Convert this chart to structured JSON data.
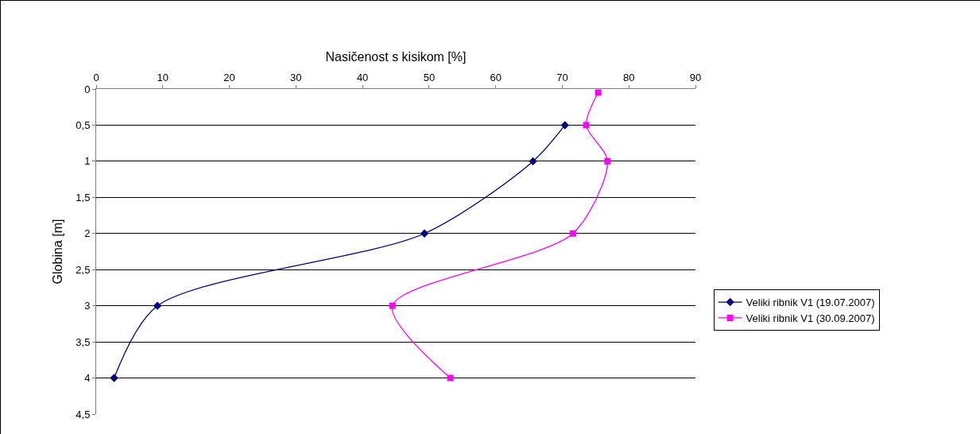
{
  "chart_data": {
    "type": "line",
    "xlabel": "Nasičenost s kisikom [%]",
    "ylabel": "Globina [m]",
    "xlim": [
      0,
      90
    ],
    "xticks": [
      0,
      10,
      20,
      30,
      40,
      50,
      60,
      70,
      80,
      90
    ],
    "ylim": [
      4.5,
      0
    ],
    "yticks": [
      0,
      {
        "value": 0.5,
        "label": "0,5"
      },
      1,
      {
        "value": 1.5,
        "label": "1,5"
      },
      2,
      {
        "value": 2.5,
        "label": "2,5"
      },
      3,
      {
        "value": 3.5,
        "label": "3,5"
      },
      4,
      {
        "value": 4.5,
        "label": "4,5"
      }
    ],
    "grid": "y",
    "legend": "right",
    "line_style": "solid",
    "series": [
      {
        "name": "Veliki ribnik V1 (19.07.2007)",
        "color": "#000080",
        "marker": "diamond",
        "x": [
          70.4,
          65.6,
          49.3,
          9.2,
          2.7
        ],
        "values": [
          0.5,
          1,
          2,
          3,
          4
        ]
      },
      {
        "name": "Veliki ribnik V1 (30.09.2007)",
        "color": "#ff00ff",
        "marker": "square",
        "x": [
          75.4,
          73.6,
          76.8,
          71.6,
          44.5,
          53.2
        ],
        "values": [
          0.05,
          0.5,
          1,
          2,
          3,
          4
        ]
      }
    ]
  }
}
